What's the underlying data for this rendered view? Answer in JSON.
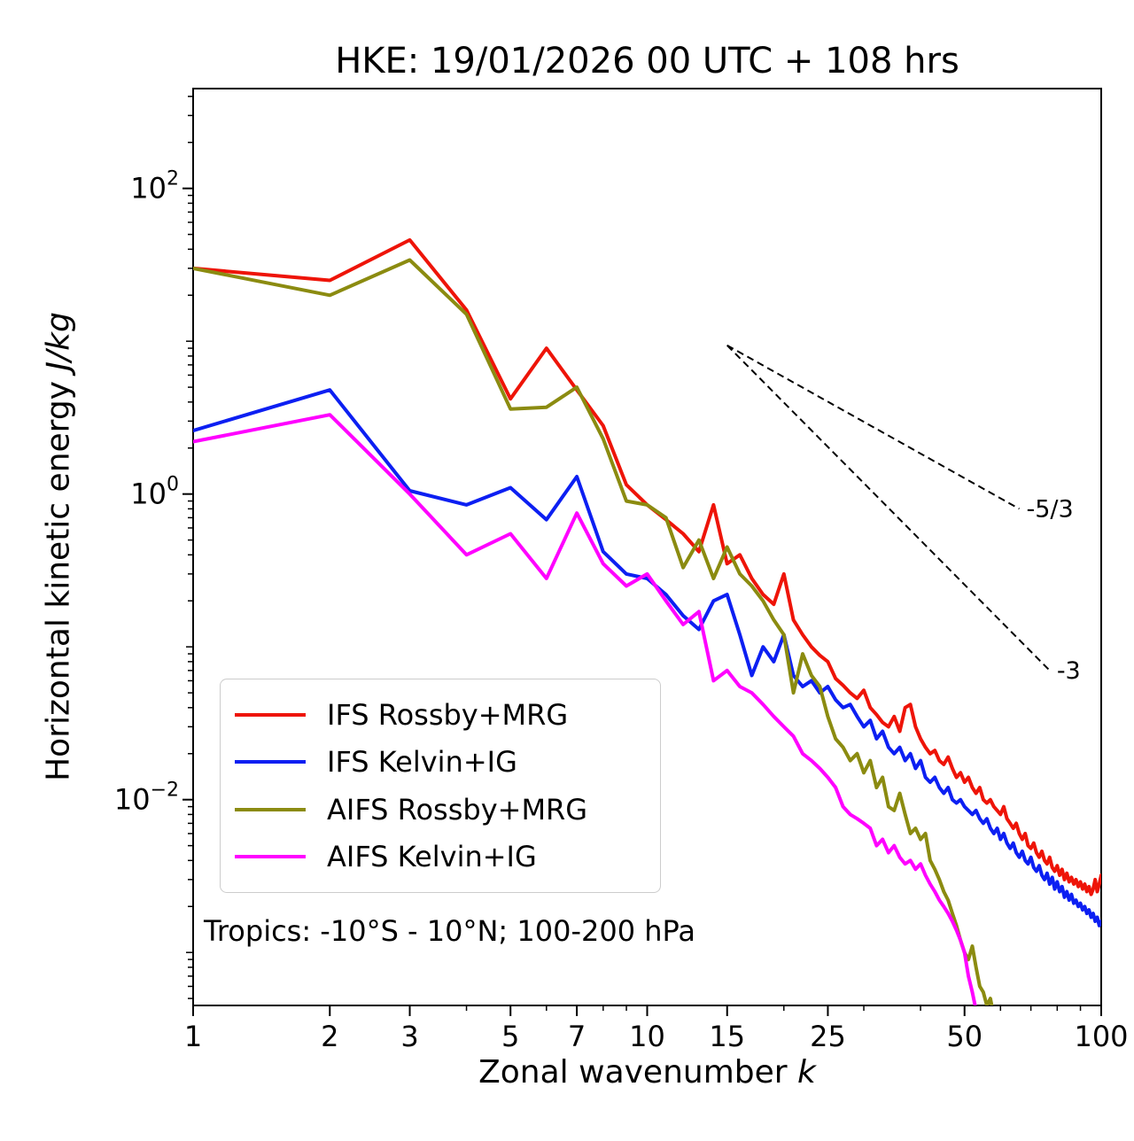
{
  "chart_data": {
    "type": "line",
    "title": "HKE: 19/01/2026 00 UTC + 108 hrs",
    "xlabel": "Zonal wavenumber ",
    "xlabel_units": "k",
    "ylabel": "Horizontal kinetic energy ",
    "ylabel_units": "J/kg",
    "annotation": "Tropics: -10°S - 10°N; 100-200 hPa",
    "x_scale": "log",
    "y_scale": "log",
    "xlim": [
      1,
      100
    ],
    "ylim": [
      0.00045,
      450
    ],
    "x_ticks": [
      1,
      2,
      3,
      5,
      7,
      10,
      15,
      25,
      50,
      100
    ],
    "y_tick_exponents": [
      2,
      0,
      -2
    ],
    "grid": false,
    "legend_position": "lower left",
    "x_note": "x values are integer zonal wavenumbers k = 1..N for each series",
    "series": [
      {
        "name": "IFS Rossby+MRG",
        "color": "#ee1408",
        "y": [
          30,
          25,
          46,
          16,
          4.2,
          9.0,
          4.8,
          2.8,
          1.15,
          0.85,
          0.68,
          0.55,
          0.42,
          0.85,
          0.35,
          0.4,
          0.28,
          0.22,
          0.19,
          0.3,
          0.15,
          0.12,
          0.1,
          0.088,
          0.08,
          0.062,
          0.056,
          0.05,
          0.046,
          0.052,
          0.04,
          0.036,
          0.032,
          0.03,
          0.035,
          0.028,
          0.04,
          0.042,
          0.03,
          0.025,
          0.022,
          0.02,
          0.021,
          0.018,
          0.017,
          0.019,
          0.016,
          0.014,
          0.015,
          0.013,
          0.014,
          0.012,
          0.011,
          0.012,
          0.01,
          0.0095,
          0.01,
          0.009,
          0.0085,
          0.008,
          0.009,
          0.0075,
          0.007,
          0.0065,
          0.007,
          0.006,
          0.0055,
          0.006,
          0.005,
          0.0048,
          0.0052,
          0.0045,
          0.0042,
          0.0046,
          0.004,
          0.0038,
          0.0042,
          0.0036,
          0.0034,
          0.0037,
          0.0032,
          0.0035,
          0.003,
          0.0033,
          0.0029,
          0.0031,
          0.0028,
          0.003,
          0.0027,
          0.0029,
          0.0026,
          0.0028,
          0.0025,
          0.0027,
          0.0024,
          0.0026,
          0.003,
          0.0025,
          0.0028,
          0.0032
        ]
      },
      {
        "name": "IFS Kelvin+IG",
        "color": "#0c1ff2",
        "y": [
          2.6,
          4.8,
          1.05,
          0.85,
          1.1,
          0.68,
          1.3,
          0.42,
          0.3,
          0.28,
          0.22,
          0.16,
          0.13,
          0.2,
          0.22,
          0.12,
          0.065,
          0.1,
          0.08,
          0.12,
          0.065,
          0.055,
          0.06,
          0.05,
          0.055,
          0.045,
          0.04,
          0.042,
          0.035,
          0.03,
          0.033,
          0.025,
          0.028,
          0.022,
          0.02,
          0.022,
          0.018,
          0.02,
          0.016,
          0.018,
          0.014,
          0.013,
          0.014,
          0.012,
          0.011,
          0.012,
          0.01,
          0.0095,
          0.01,
          0.009,
          0.0085,
          0.008,
          0.0085,
          0.0075,
          0.007,
          0.0075,
          0.0065,
          0.006,
          0.0065,
          0.0055,
          0.006,
          0.0052,
          0.0048,
          0.0052,
          0.0045,
          0.0042,
          0.0046,
          0.004,
          0.0038,
          0.0042,
          0.0036,
          0.0034,
          0.0037,
          0.0032,
          0.003,
          0.0033,
          0.0028,
          0.0031,
          0.0026,
          0.0029,
          0.0025,
          0.0027,
          0.0023,
          0.0025,
          0.0022,
          0.0024,
          0.0021,
          0.0022,
          0.002,
          0.0021,
          0.0019,
          0.002,
          0.0018,
          0.0019,
          0.0017,
          0.0018,
          0.0016,
          0.0017,
          0.0015,
          0.0016
        ]
      },
      {
        "name": "AIFS Rossby+MRG",
        "color": "#8b8b10",
        "y": [
          30,
          20,
          34,
          15,
          3.6,
          3.7,
          5.0,
          2.3,
          0.9,
          0.85,
          0.7,
          0.33,
          0.5,
          0.28,
          0.45,
          0.3,
          0.25,
          0.2,
          0.15,
          0.12,
          0.05,
          0.09,
          0.065,
          0.055,
          0.035,
          0.025,
          0.022,
          0.018,
          0.02,
          0.015,
          0.018,
          0.012,
          0.014,
          0.009,
          0.0085,
          0.011,
          0.008,
          0.006,
          0.0065,
          0.0055,
          0.006,
          0.004,
          0.0035,
          0.003,
          0.0025,
          0.0022,
          0.0018,
          0.0015,
          0.0012,
          0.001,
          0.0009,
          0.0011,
          0.0008,
          0.0006,
          0.00055,
          0.00045,
          0.0005,
          0.00038,
          0.0003,
          0.00028
        ]
      },
      {
        "name": "AIFS Kelvin+IG",
        "color": "#ff00ff",
        "y": [
          2.2,
          3.3,
          1.0,
          0.4,
          0.55,
          0.28,
          0.75,
          0.35,
          0.25,
          0.3,
          0.2,
          0.14,
          0.17,
          0.06,
          0.07,
          0.055,
          0.05,
          0.042,
          0.035,
          0.03,
          0.026,
          0.02,
          0.018,
          0.016,
          0.014,
          0.012,
          0.009,
          0.008,
          0.0075,
          0.007,
          0.0065,
          0.005,
          0.0055,
          0.0045,
          0.005,
          0.0042,
          0.0038,
          0.004,
          0.0035,
          0.0038,
          0.0032,
          0.0028,
          0.0025,
          0.0022,
          0.002,
          0.0018,
          0.0016,
          0.0014,
          0.0012,
          0.001,
          0.0007,
          0.00055,
          0.00042,
          0.00034,
          0.00028
        ]
      }
    ],
    "reference_lines": [
      {
        "label": "-5/3",
        "slope": "-5/3",
        "style": "dashed",
        "x": [
          15,
          66
        ],
        "y": [
          9.4,
          0.8
        ]
      },
      {
        "label": "-3",
        "slope": "-3",
        "style": "dashed",
        "x": [
          15,
          77
        ],
        "y": [
          9.4,
          0.07
        ]
      }
    ]
  }
}
